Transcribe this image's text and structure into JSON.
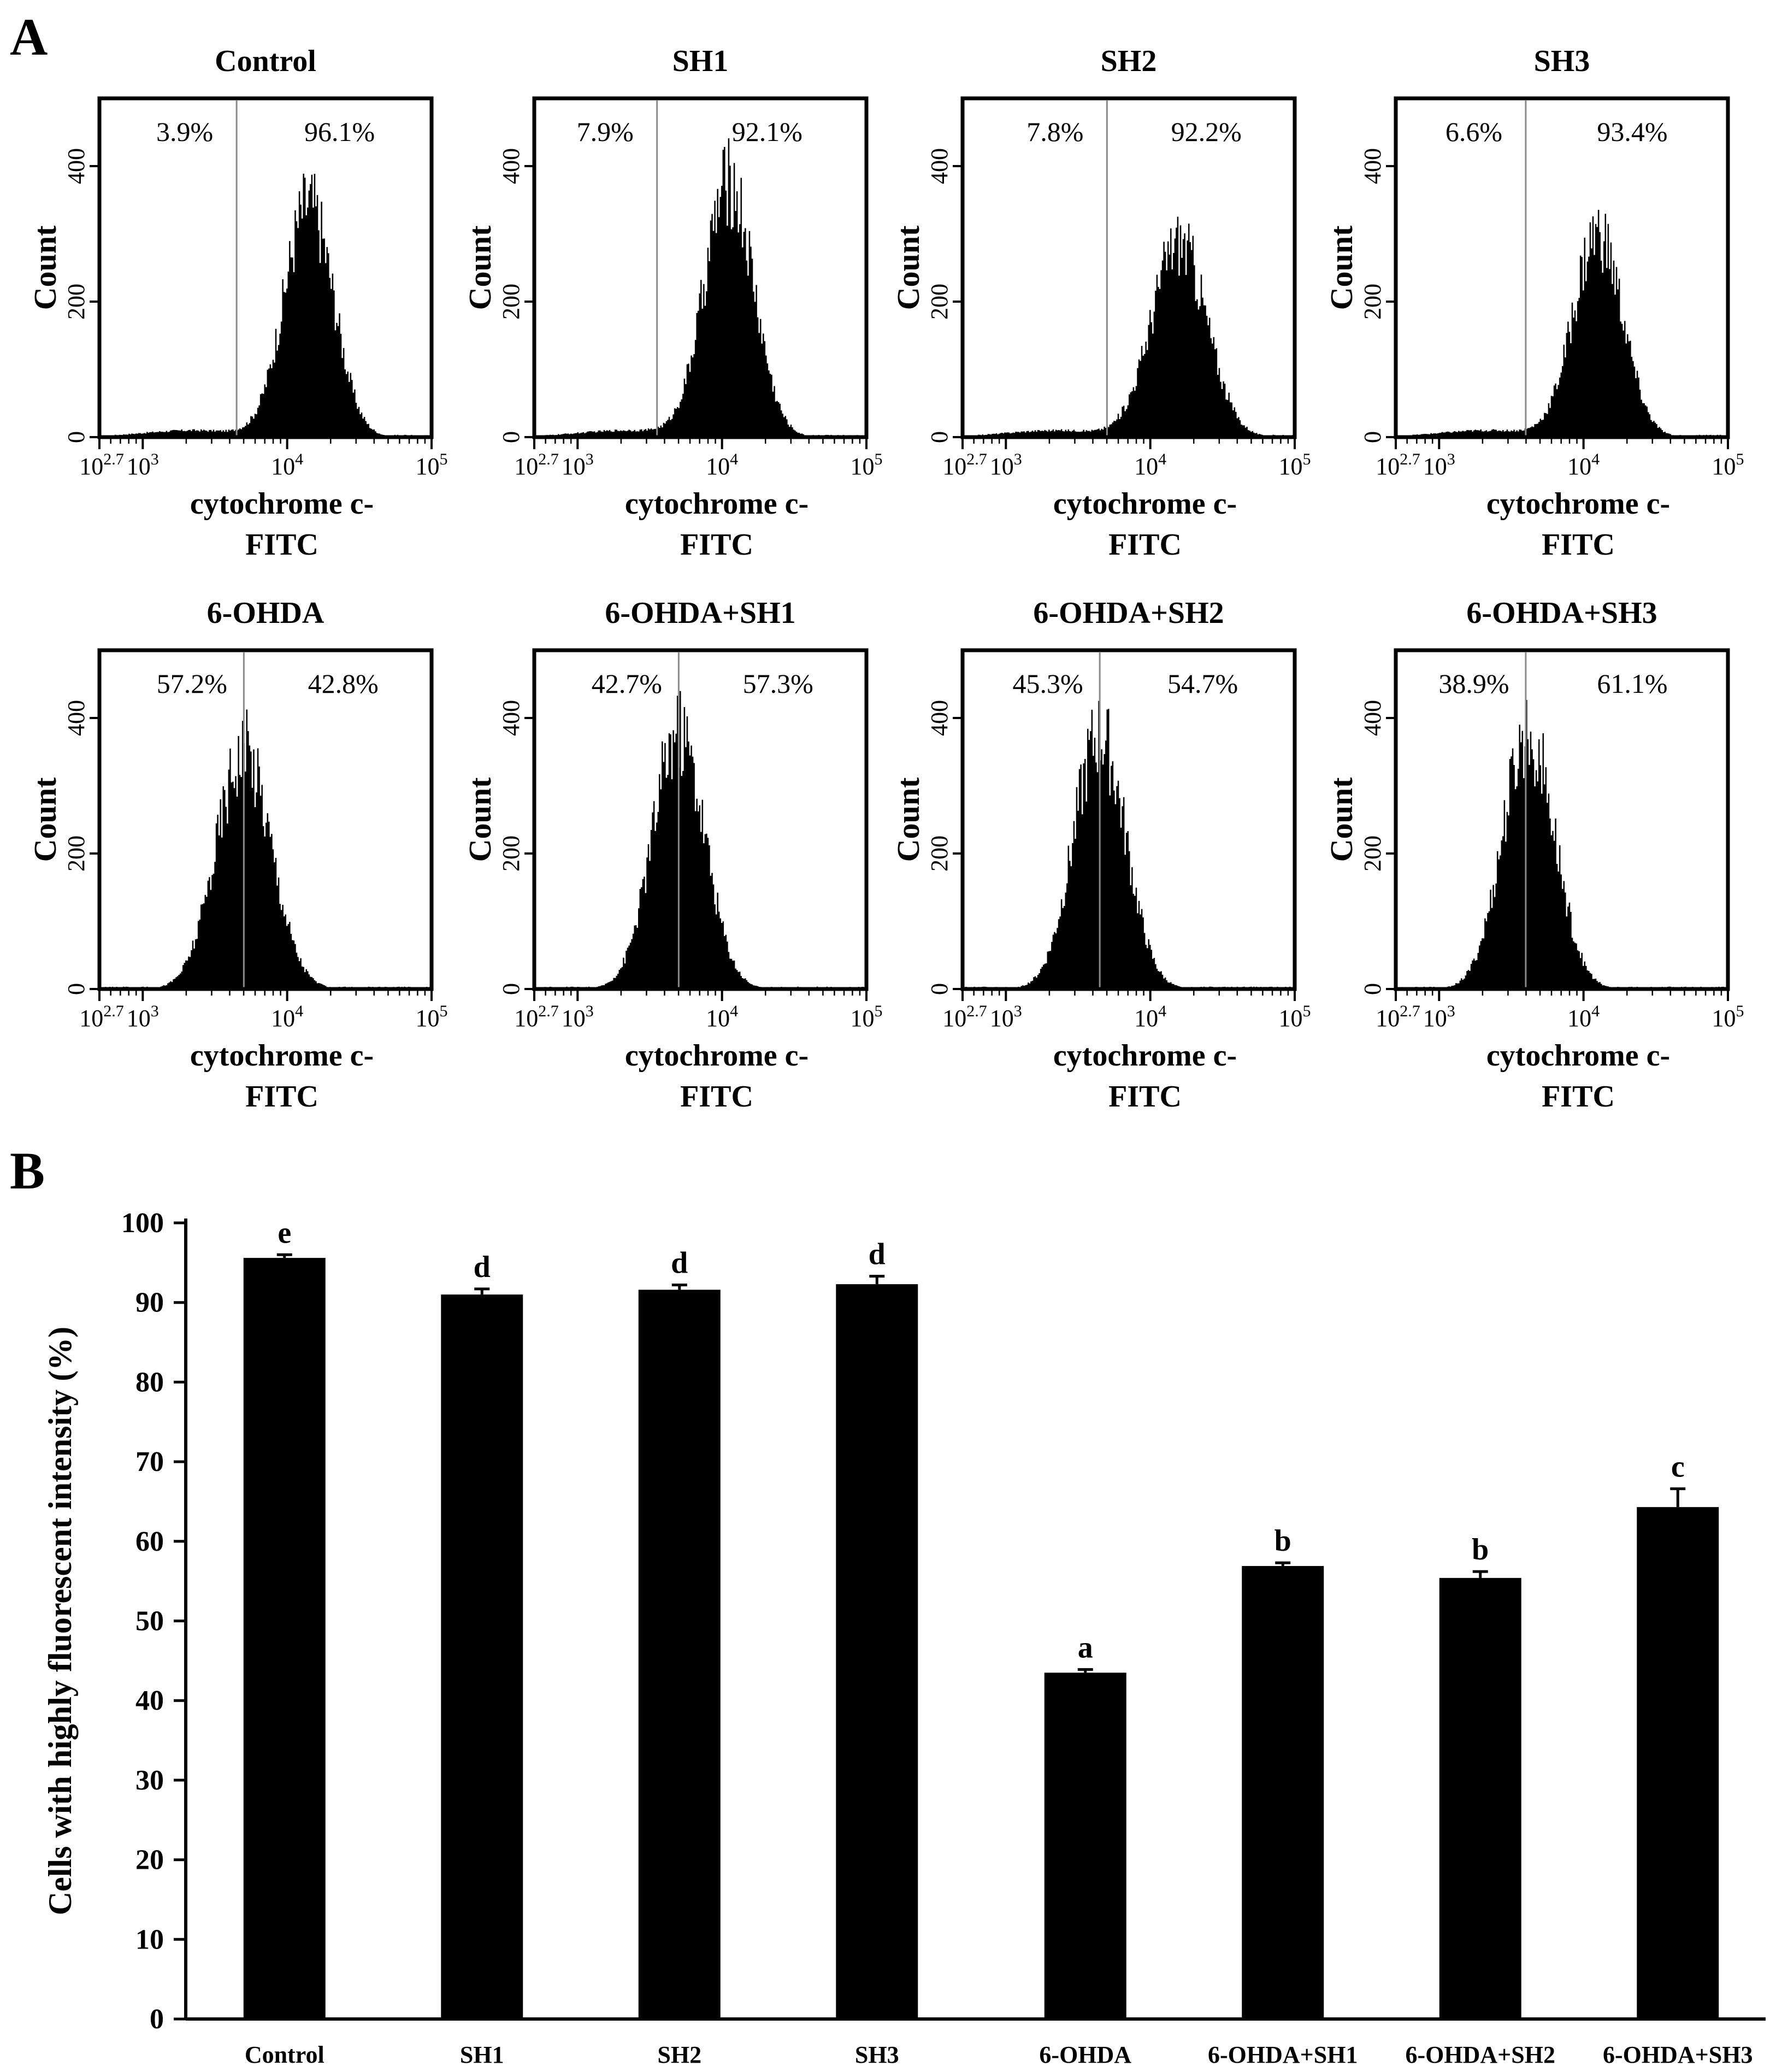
{
  "panel_labels": {
    "a": "A",
    "b": "B"
  },
  "chart_data": [
    {
      "type": "histogram-grid",
      "panel": "A",
      "ylabel": "Count",
      "xlabel_line1": "cytochrome c-",
      "xlabel_line2": "FITC",
      "y_ticks": [
        "0",
        "200",
        "400"
      ],
      "ylim": [
        0,
        500
      ],
      "x_scale": "log",
      "x_ticks": [
        {
          "base": "10",
          "exp": "2.7"
        },
        {
          "base": "10",
          "exp": "3"
        },
        {
          "base": "10",
          "exp": "4"
        },
        {
          "base": "10",
          "exp": "5"
        }
      ],
      "panels": [
        {
          "title": "Control",
          "left_pct": "3.9%",
          "right_pct": "96.1%",
          "gate": 3.65,
          "peak_log": 4.15,
          "peak_count": 345,
          "sigma": 0.17
        },
        {
          "title": "SH1",
          "left_pct": "7.9%",
          "right_pct": "92.1%",
          "gate": 3.55,
          "peak_log": 4.05,
          "peak_count": 375,
          "sigma": 0.17
        },
        {
          "title": "SH2",
          "left_pct": "7.8%",
          "right_pct": "92.2%",
          "gate": 3.7,
          "peak_log": 4.2,
          "peak_count": 290,
          "sigma": 0.19
        },
        {
          "title": "SH3",
          "left_pct": "6.6%",
          "right_pct": "93.4%",
          "gate": 3.6,
          "peak_log": 4.1,
          "peak_count": 300,
          "sigma": 0.17
        },
        {
          "title": "6-OHDA",
          "left_pct": "57.2%",
          "right_pct": "42.8%",
          "gate": 3.7,
          "peak_log": 3.7,
          "peak_count": 355,
          "sigma": 0.19
        },
        {
          "title": "6-OHDA+SH1",
          "left_pct": "42.7%",
          "right_pct": "57.3%",
          "gate": 3.7,
          "peak_log": 3.7,
          "peak_count": 380,
          "sigma": 0.18
        },
        {
          "title": "6-OHDA+SH2",
          "left_pct": "45.3%",
          "right_pct": "54.7%",
          "gate": 3.65,
          "peak_log": 3.65,
          "peak_count": 375,
          "sigma": 0.18
        },
        {
          "title": "6-OHDA+SH3",
          "left_pct": "38.9%",
          "right_pct": "61.1%",
          "gate": 3.6,
          "peak_log": 3.62,
          "peak_count": 375,
          "sigma": 0.18
        }
      ]
    },
    {
      "type": "bar",
      "panel": "B",
      "ylabel": "Cells with highly fluorescent intensity (%)",
      "xlabel": "",
      "ylim": [
        0,
        100
      ],
      "y_ticks": [
        0,
        10,
        20,
        30,
        40,
        50,
        60,
        70,
        80,
        90,
        100
      ],
      "categories": [
        "Control",
        "SH1",
        "SH2",
        "SH3",
        "6-OHDA",
        "6-OHDA+SH1",
        "6-OHDA+SH2",
        "6-OHDA+SH3"
      ],
      "values": [
        95.6,
        91.0,
        91.6,
        92.3,
        43.5,
        56.9,
        55.4,
        64.3
      ],
      "errors": [
        0.4,
        0.7,
        0.6,
        1.0,
        0.4,
        0.4,
        0.8,
        2.3
      ],
      "significance": [
        "e",
        "d",
        "d",
        "d",
        "a",
        "b",
        "b",
        "c"
      ]
    }
  ]
}
